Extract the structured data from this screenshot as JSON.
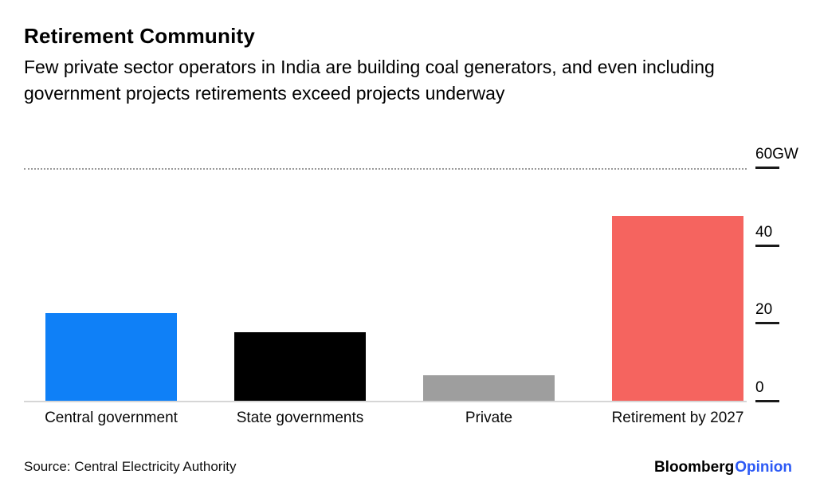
{
  "header": {
    "title": "Retirement Community",
    "subtitle": "Few private sector operators in India are building coal generators, and even including government projects retirements exceed projects underway"
  },
  "chart_data": {
    "type": "bar",
    "title": "Retirement Community",
    "subtitle": "Few private sector operators in India are building coal generators, and even including government projects retirements exceed projects underway",
    "categories": [
      "Central government",
      "State governments",
      "Private",
      "Retirement by 2027"
    ],
    "values": [
      23,
      18,
      7,
      48
    ],
    "unit": "GW",
    "xlabel": "",
    "ylabel": "GW",
    "ylim": [
      0,
      60
    ],
    "yticks": [
      {
        "label": "60GW",
        "value": 60
      },
      {
        "label": "40",
        "value": 40
      },
      {
        "label": "20",
        "value": 20
      },
      {
        "label": "0",
        "value": 0
      }
    ],
    "colors": [
      "#0f80f7",
      "#000000",
      "#9e9e9e",
      "#f5645f"
    ],
    "grid": "dotted-top-gridline-at-60",
    "legend_position": "none",
    "axis_side": "right"
  },
  "footer": {
    "source": "Source: Central Electricity Authority",
    "brand_first": "Bloomberg",
    "brand_second": "Opinion",
    "brand_second_color": "#2d5af5"
  }
}
